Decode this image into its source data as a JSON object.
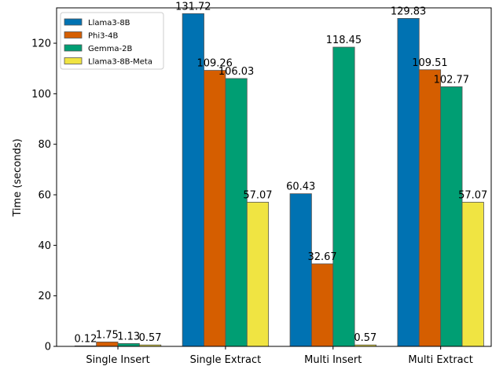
{
  "chart_data": {
    "type": "bar",
    "title": "",
    "xlabel": "",
    "ylabel": "Time (seconds)",
    "ylim": [
      0,
      134
    ],
    "yticks": [
      0,
      20,
      40,
      60,
      80,
      100,
      120
    ],
    "categories": [
      "Single Insert",
      "Single Extract",
      "Multi Insert",
      "Multi Extract"
    ],
    "legend_position": "top-left",
    "series": [
      {
        "name": "Llama3-8B",
        "color": "#0072b2",
        "values": [
          0.12,
          131.72,
          60.43,
          129.83
        ],
        "labels": [
          "0.12",
          "131.72",
          "60.43",
          "129.83"
        ]
      },
      {
        "name": "Phi3-4B",
        "color": "#d55e00",
        "values": [
          1.75,
          109.26,
          32.67,
          109.51
        ],
        "labels": [
          "1.75",
          "109.26",
          "32.67",
          "109.51"
        ]
      },
      {
        "name": "Gemma-2B",
        "color": "#009e73",
        "values": [
          1.13,
          106.03,
          118.45,
          102.77
        ],
        "labels": [
          "1.13",
          "106.03",
          "118.45",
          "102.77"
        ]
      },
      {
        "name": "Llama3-8B-Meta",
        "color": "#f0e442",
        "values": [
          0.57,
          57.07,
          0.57,
          57.07
        ],
        "labels": [
          "0.57",
          "57.07",
          "0.57",
          "57.07"
        ]
      }
    ]
  }
}
